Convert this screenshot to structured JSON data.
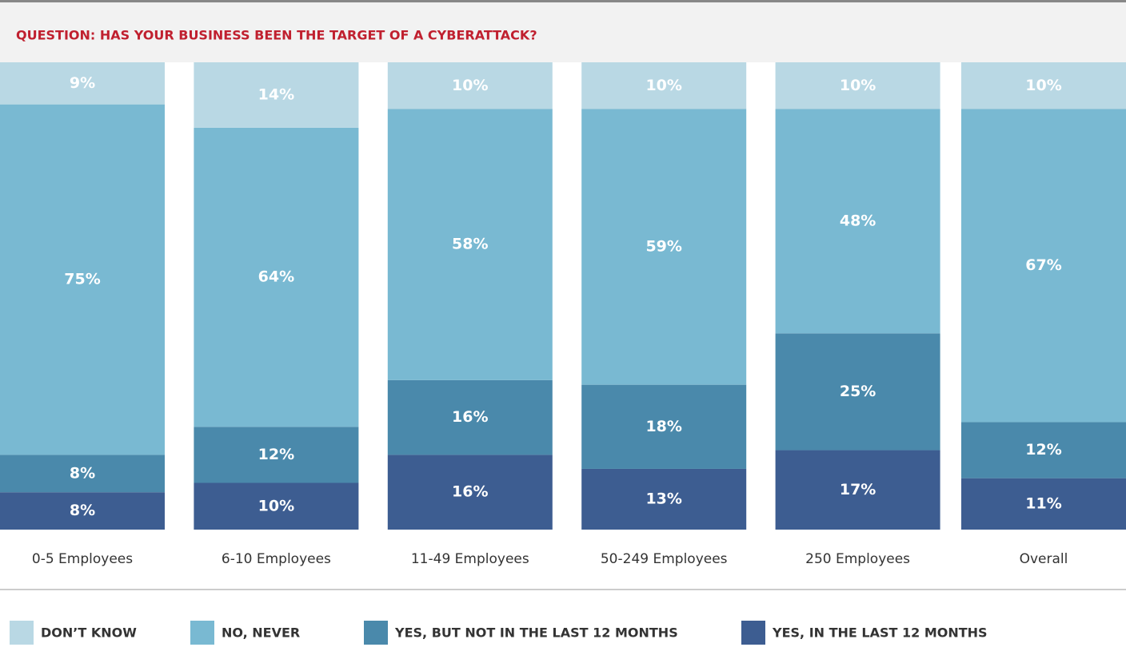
{
  "chart_data": {
    "type": "stacked_bar",
    "title": "QUESTION: HAS YOUR BUSINESS BEEN THE TARGET OF A CYBERATTACK?",
    "categories": [
      "0-5 Employees",
      "6-10 Employees",
      "11-49 Employees",
      "50-249 Employees",
      "250 Employees",
      "Overall"
    ],
    "ylim": [
      0,
      100
    ],
    "series": [
      {
        "name": "DON’T KNOW",
        "color": "#b9d8e4",
        "values": [
          9,
          14,
          10,
          10,
          10,
          10
        ],
        "value_labels": [
          "9%",
          "14%",
          "10%",
          "10%",
          "10%",
          "10%"
        ]
      },
      {
        "name": "NO, NEVER",
        "color": "#79b9d2",
        "values": [
          75,
          64,
          58,
          59,
          48,
          67
        ],
        "value_labels": [
          "75%",
          "64%",
          "58%",
          "59%",
          "48%",
          "67%"
        ]
      },
      {
        "name": "YES, BUT NOT IN THE LAST 12 MONTHS",
        "color": "#4a89ab",
        "values": [
          8,
          12,
          16,
          18,
          25,
          12
        ],
        "value_labels": [
          "8%",
          "12%",
          "16%",
          "18%",
          "25%",
          "12%"
        ]
      },
      {
        "name": "YES, IN THE LAST 12 MONTHS",
        "color": "#3d5d91",
        "values": [
          8,
          10,
          16,
          13,
          17,
          11
        ],
        "value_labels": [
          "8%",
          "10%",
          "16%",
          "13%",
          "17%",
          "11%"
        ]
      }
    ],
    "legend": "bottom"
  }
}
